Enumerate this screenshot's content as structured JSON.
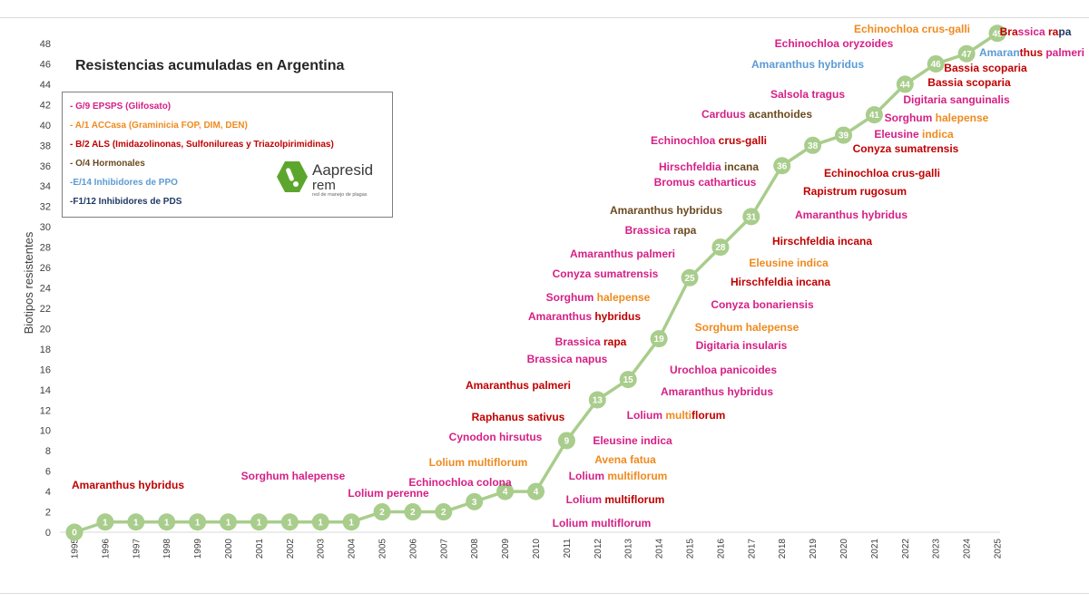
{
  "chart_title": "Resistencias acumuladas en Argentina",
  "legend": [
    {
      "label": "- G/9 EPSPS (Glifosato)",
      "color": "#d61f86"
    },
    {
      "label": "- A/1 ACCasa (Graminicia FOP, DIM, DEN)",
      "color": "#ef8a1e"
    },
    {
      "label": "- B/2 ALS (Imidazolinonas, Sulfonilureas y Triazolpirimidinas)",
      "color": "#c00000"
    },
    {
      "label": "- O/4 Hormonales",
      "color": "#6b4a1f"
    },
    {
      "label": "-E/14 Inhibidores de PPO",
      "color": "#5b9bd5"
    },
    {
      "label": "-F1/12  Inhibidores de PDS",
      "color": "#1f3864"
    }
  ],
  "logo": {
    "name": "Aapresid",
    "sub": "rem",
    "tagline": "red de manejo de plagas",
    "color": "#5da62e"
  },
  "colors": {
    "line": "#a9cd8c",
    "marker": "#a9cd8c"
  },
  "chart_data": {
    "type": "line",
    "title": "Resistencias acumuladas en Argentina",
    "ylabel": "Biotipos resistentes",
    "xlabel": "",
    "ylim": [
      0,
      48
    ],
    "yticks": [
      0,
      2,
      4,
      6,
      8,
      10,
      12,
      14,
      16,
      18,
      20,
      22,
      24,
      26,
      28,
      30,
      32,
      34,
      36,
      38,
      40,
      42,
      44,
      46,
      48
    ],
    "x": [
      "1995",
      "1996",
      "1997",
      "1998",
      "1999",
      "2000",
      "2001",
      "2002",
      "2003",
      "2004",
      "2005",
      "2006",
      "2007",
      "2008",
      "2009",
      "2010",
      "2011",
      "2012",
      "2013",
      "2014",
      "2015",
      "2016",
      "2017",
      "2018",
      "2019",
      "2020",
      "2021",
      "2022",
      "2023",
      "2024",
      "2025"
    ],
    "series": [
      {
        "values": [
          0,
          1,
          1,
          1,
          1,
          1,
          1,
          1,
          1,
          1,
          2,
          2,
          2,
          3,
          4,
          4,
          9,
          13,
          15,
          19,
          25,
          28,
          31,
          36,
          38,
          39,
          41,
          44,
          46,
          47,
          49
        ]
      }
    ],
    "data_labels": true,
    "grid": false,
    "annotations": [
      {
        "parts": [
          {
            "t": "Amaranthus hybridus",
            "c": "#c00000"
          }
        ],
        "x": 141,
        "y": 535
      },
      {
        "parts": [
          {
            "t": "Sorghum halepense",
            "c": "#d61f86"
          }
        ],
        "x": 323,
        "y": 525
      },
      {
        "parts": [
          {
            "t": "Lolium perenne",
            "c": "#d61f86"
          }
        ],
        "x": 428,
        "y": 544
      },
      {
        "parts": [
          {
            "t": "Echinochloa colona",
            "c": "#d61f86"
          }
        ],
        "x": 507,
        "y": 532
      },
      {
        "parts": [
          {
            "t": "Lolium multiflorum",
            "c": "#ef8a1e"
          }
        ],
        "x": 527,
        "y": 510
      },
      {
        "parts": [
          {
            "t": "Cynodon hirsutus",
            "c": "#d61f86"
          }
        ],
        "x": 546,
        "y": 482
      },
      {
        "parts": [
          {
            "t": "Raphanus sativus",
            "c": "#c00000"
          }
        ],
        "x": 571,
        "y": 460
      },
      {
        "parts": [
          {
            "t": "Amaranthus palmeri",
            "c": "#c00000"
          }
        ],
        "x": 571,
        "y": 425
      },
      {
        "parts": [
          {
            "t": "Brassica napus",
            "c": "#d61f86"
          }
        ],
        "x": 625,
        "y": 396
      },
      {
        "parts": [
          {
            "t": "Brassica ",
            "c": "#d61f86"
          },
          {
            "t": "rapa",
            "c": "#c00000"
          }
        ],
        "x": 651,
        "y": 377
      },
      {
        "parts": [
          {
            "t": "Amaranthus ",
            "c": "#d61f86"
          },
          {
            "t": "hybridus",
            "c": "#c00000"
          }
        ],
        "x": 644,
        "y": 349
      },
      {
        "parts": [
          {
            "t": "Sorghum ",
            "c": "#d61f86"
          },
          {
            "t": "halepense",
            "c": "#ef8a1e"
          }
        ],
        "x": 659,
        "y": 328
      },
      {
        "parts": [
          {
            "t": "Conyza sumatrensis",
            "c": "#d61f86"
          }
        ],
        "x": 667,
        "y": 302
      },
      {
        "parts": [
          {
            "t": "Amaranthus palmeri",
            "c": "#d61f86"
          }
        ],
        "x": 686,
        "y": 280
      },
      {
        "parts": [
          {
            "t": "Brassica ",
            "c": "#d61f86"
          },
          {
            "t": "rapa",
            "c": "#6b4a1f"
          }
        ],
        "x": 728,
        "y": 254
      },
      {
        "parts": [
          {
            "t": "Amaranthus hybridus",
            "c": "#6b4a1f"
          }
        ],
        "x": 734,
        "y": 232
      },
      {
        "parts": [
          {
            "t": "Bromus catharticus",
            "c": "#d61f86"
          }
        ],
        "x": 777,
        "y": 201
      },
      {
        "parts": [
          {
            "t": "Hirschfeldia ",
            "c": "#d61f86"
          },
          {
            "t": "incana",
            "c": "#6b4a1f"
          }
        ],
        "x": 781,
        "y": 184
      },
      {
        "parts": [
          {
            "t": "Echinochloa ",
            "c": "#d61f86"
          },
          {
            "t": "crus-galli",
            "c": "#c00000"
          }
        ],
        "x": 781,
        "y": 155
      },
      {
        "parts": [
          {
            "t": "Carduus ",
            "c": "#d61f86"
          },
          {
            "t": "acanthoides",
            "c": "#6b4a1f"
          }
        ],
        "x": 834,
        "y": 126
      },
      {
        "parts": [
          {
            "t": "Salsola tragus",
            "c": "#d61f86"
          }
        ],
        "x": 890,
        "y": 104
      },
      {
        "parts": [
          {
            "t": "Amaranthus hybridus",
            "c": "#5b9bd5"
          }
        ],
        "x": 890,
        "y": 71
      },
      {
        "parts": [
          {
            "t": "Echinochloa oryzoides",
            "c": "#d61f86"
          }
        ],
        "x": 919,
        "y": 48
      },
      {
        "parts": [
          {
            "t": "Echinochloa crus-galli",
            "c": "#ef8a1e"
          }
        ],
        "x": 1005,
        "y": 32
      },
      {
        "parts": [
          {
            "t": "Bra",
            "c": "#c00000"
          },
          {
            "t": "ssica ",
            "c": "#d61f86"
          },
          {
            "t": "ra",
            "c": "#c00000"
          },
          {
            "t": "pa",
            "c": "#1f3864"
          }
        ],
        "x": 1141,
        "y": 35
      },
      {
        "parts": [
          {
            "t": "Amaran",
            "c": "#5b9bd5"
          },
          {
            "t": "thus ",
            "c": "#c00000"
          },
          {
            "t": "palmeri",
            "c": "#d61f86"
          }
        ],
        "x": 1137,
        "y": 58
      },
      {
        "parts": [
          {
            "t": "Bassia scoparia",
            "c": "#c00000"
          }
        ],
        "x": 1086,
        "y": 75
      },
      {
        "parts": [
          {
            "t": "Bassia scoparia",
            "c": "#c00000"
          }
        ],
        "x": 1068,
        "y": 91
      },
      {
        "parts": [
          {
            "t": "Digitaria sanguinalis",
            "c": "#d61f86"
          }
        ],
        "x": 1054,
        "y": 110
      },
      {
        "parts": [
          {
            "t": "Sorghum ",
            "c": "#d61f86"
          },
          {
            "t": "halepense",
            "c": "#ef8a1e"
          }
        ],
        "x": 1032,
        "y": 130
      },
      {
        "parts": [
          {
            "t": "Eleusine ",
            "c": "#d61f86"
          },
          {
            "t": "indica",
            "c": "#ef8a1e"
          }
        ],
        "x": 1007,
        "y": 148
      },
      {
        "parts": [
          {
            "t": "Conyza sumatrensis",
            "c": "#c00000"
          }
        ],
        "x": 998,
        "y": 164
      },
      {
        "parts": [
          {
            "t": "Echinochloa crus-galli",
            "c": "#c00000"
          }
        ],
        "x": 972,
        "y": 191
      },
      {
        "parts": [
          {
            "t": "Rapistrum rugosum",
            "c": "#c00000"
          }
        ],
        "x": 942,
        "y": 211
      },
      {
        "parts": [
          {
            "t": "Amaranthus hybridus",
            "c": "#d61f86"
          }
        ],
        "x": 938,
        "y": 237
      },
      {
        "parts": [
          {
            "t": "Hirschfeldia incana",
            "c": "#c00000"
          }
        ],
        "x": 906,
        "y": 266
      },
      {
        "parts": [
          {
            "t": "Eleusine indica",
            "c": "#ef8a1e"
          }
        ],
        "x": 869,
        "y": 290
      },
      {
        "parts": [
          {
            "t": "Hirschfeldia incana",
            "c": "#c00000"
          }
        ],
        "x": 860,
        "y": 311
      },
      {
        "parts": [
          {
            "t": "Conyza bonariensis",
            "c": "#d61f86"
          }
        ],
        "x": 840,
        "y": 336
      },
      {
        "parts": [
          {
            "t": "Sorghum halepense",
            "c": "#ef8a1e"
          }
        ],
        "x": 823,
        "y": 361
      },
      {
        "parts": [
          {
            "t": "Digitaria insularis",
            "c": "#d61f86"
          }
        ],
        "x": 817,
        "y": 381
      },
      {
        "parts": [
          {
            "t": "Urochloa panicoides",
            "c": "#d61f86"
          }
        ],
        "x": 797,
        "y": 408
      },
      {
        "parts": [
          {
            "t": "Amaranthus hybridus",
            "c": "#d61f86"
          }
        ],
        "x": 790,
        "y": 432
      },
      {
        "parts": [
          {
            "t": "Lolium ",
            "c": "#d61f86"
          },
          {
            "t": "multi",
            "c": "#ef8a1e"
          },
          {
            "t": "florum",
            "c": "#c00000"
          }
        ],
        "x": 745,
        "y": 458
      },
      {
        "parts": [
          {
            "t": "Eleusine indica",
            "c": "#d61f86"
          }
        ],
        "x": 697,
        "y": 486
      },
      {
        "parts": [
          {
            "t": "Avena fatua",
            "c": "#ef8a1e"
          }
        ],
        "x": 689,
        "y": 507
      },
      {
        "parts": [
          {
            "t": "Lolium ",
            "c": "#d61f86"
          },
          {
            "t": "multiflorum",
            "c": "#ef8a1e"
          }
        ],
        "x": 681,
        "y": 525
      },
      {
        "parts": [
          {
            "t": "Lolium ",
            "c": "#d61f86"
          },
          {
            "t": "multiflorum",
            "c": "#c00000"
          }
        ],
        "x": 678,
        "y": 551
      },
      {
        "parts": [
          {
            "t": "Lolium multiflorum",
            "c": "#d61f86"
          }
        ],
        "x": 663,
        "y": 577
      }
    ]
  }
}
